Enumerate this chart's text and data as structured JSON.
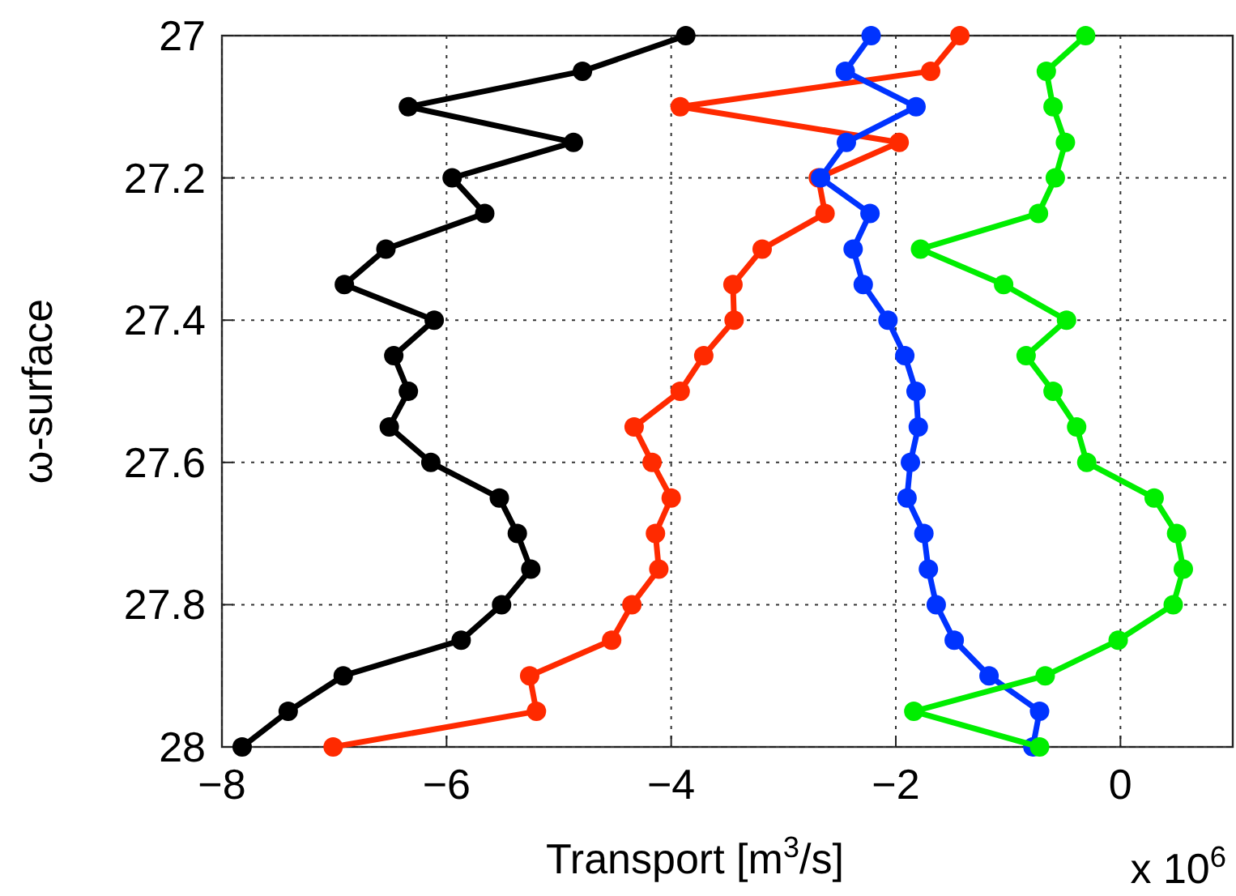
{
  "chart_data": {
    "type": "line",
    "xlabel": "Transport [m$^{3}$/s]",
    "ylabel": "ω-surface",
    "annotations": [
      "x 10$^{6}$"
    ],
    "xlim": [
      -8,
      1
    ],
    "xticks": [
      {
        "value": -8,
        "label": "−8"
      },
      {
        "value": -6,
        "label": "−6"
      },
      {
        "value": -4,
        "label": "−4"
      },
      {
        "value": -2,
        "label": "−2"
      },
      0
    ],
    "ylim": [
      28,
      27
    ],
    "yticks": [
      27,
      27.2,
      27.4,
      27.6,
      27.8,
      28
    ],
    "grid": true,
    "marker": "circle",
    "line_style": "solid",
    "series": [
      {
        "color": "#000000",
        "x": [
          -3.87,
          -4.79,
          -6.34,
          -4.87,
          -5.95,
          -5.66,
          -6.54,
          -6.91,
          -6.11,
          -6.47,
          -6.34,
          -6.51,
          -6.14,
          -5.53,
          -5.37,
          -5.25,
          -5.51,
          -5.87,
          -6.92,
          -7.41,
          -7.82
        ],
        "values": [
          27,
          27.05,
          27.1,
          27.15,
          27.2,
          27.25,
          27.3,
          27.35,
          27.4,
          27.45,
          27.5,
          27.55,
          27.6,
          27.65,
          27.7,
          27.75,
          27.8,
          27.85,
          27.9,
          27.95,
          28
        ]
      },
      {
        "color": "#ff2a00",
        "x": [
          -1.43,
          -1.69,
          -3.92,
          -1.97,
          -2.69,
          -2.63,
          -3.19,
          -3.45,
          -3.44,
          -3.71,
          -3.92,
          -4.33,
          -4.17,
          -4.0,
          -4.14,
          -4.11,
          -4.35,
          -4.53,
          -5.26,
          -5.2,
          -7.01
        ],
        "values": [
          27,
          27.05,
          27.1,
          27.15,
          27.2,
          27.25,
          27.3,
          27.35,
          27.4,
          27.45,
          27.5,
          27.55,
          27.6,
          27.65,
          27.7,
          27.75,
          27.8,
          27.85,
          27.9,
          27.95,
          28
        ]
      },
      {
        "color": "#0033ff",
        "x": [
          -2.22,
          -2.45,
          -1.82,
          -2.44,
          -2.67,
          -2.23,
          -2.38,
          -2.29,
          -2.07,
          -1.92,
          -1.82,
          -1.8,
          -1.87,
          -1.9,
          -1.75,
          -1.71,
          -1.64,
          -1.48,
          -1.17,
          -0.72,
          -0.78
        ],
        "values": [
          27,
          27.05,
          27.1,
          27.15,
          27.2,
          27.25,
          27.3,
          27.35,
          27.4,
          27.45,
          27.5,
          27.55,
          27.6,
          27.65,
          27.7,
          27.75,
          27.8,
          27.85,
          27.9,
          27.95,
          28
        ]
      },
      {
        "color": "#00ee00",
        "x": [
          -0.31,
          -0.66,
          -0.6,
          -0.49,
          -0.58,
          -0.73,
          -1.78,
          -1.04,
          -0.48,
          -0.84,
          -0.6,
          -0.39,
          -0.3,
          0.3,
          0.5,
          0.56,
          0.47,
          -0.02,
          -0.67,
          -1.84,
          -0.72
        ],
        "values": [
          27,
          27.05,
          27.1,
          27.15,
          27.2,
          27.25,
          27.3,
          27.35,
          27.4,
          27.45,
          27.5,
          27.55,
          27.6,
          27.65,
          27.7,
          27.75,
          27.8,
          27.85,
          27.9,
          27.95,
          28
        ]
      }
    ]
  }
}
